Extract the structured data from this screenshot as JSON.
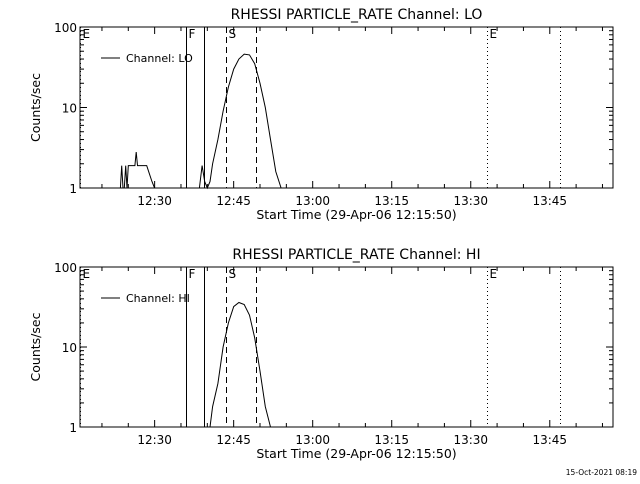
{
  "figure": {
    "timestamp": "15-Oct-2021 08:19"
  },
  "chart_data": [
    {
      "type": "line",
      "title": "RHESSI PARTICLE_RATE Channel: LO",
      "xlabel": "Start Time (29-Apr-06 12:15:50)",
      "ylabel": "Counts/sec",
      "yscale": "log",
      "ylim": [
        1,
        100
      ],
      "xlim": [
        "12:15:50",
        "13:57:00"
      ],
      "xticks": [
        "12:30",
        "12:45",
        "13:00",
        "13:15",
        "13:30",
        "13:45"
      ],
      "yticks": [
        "1",
        "10",
        "100"
      ],
      "legend": {
        "label": "Channel: LO",
        "position": "top-left"
      },
      "series": [
        {
          "name": "Channel: LO",
          "segments": [
            {
              "x": [
                "12:23:30",
                "12:23:45",
                "12:24:00",
                "12:24:15",
                "12:24:30",
                "12:24:45",
                "12:25:00",
                "12:25:15",
                "12:25:30",
                "12:25:45",
                "12:26:00",
                "12:26:15",
                "12:26:30",
                "12:26:45",
                "12:27:00",
                "12:27:15",
                "12:27:30",
                "12:27:45",
                "12:28:00",
                "12:28:30",
                "12:29:00",
                "12:29:30",
                "12:30:00"
              ],
              "y": [
                1,
                1.9,
                1,
                1,
                1.9,
                1,
                1.9,
                1.9,
                1.9,
                1.9,
                1.9,
                1.9,
                2.8,
                1.9,
                1.9,
                1.9,
                1.9,
                1.9,
                1.9,
                1.9,
                1.5,
                1.2,
                1
              ]
            },
            {
              "x": [
                "12:38:30",
                "12:39:00",
                "12:39:30",
                "12:40:00",
                "12:40:30",
                "12:41:00",
                "12:42:00",
                "12:43:00",
                "12:44:00",
                "12:45:00",
                "12:46:00",
                "12:47:00",
                "12:48:00",
                "12:49:00",
                "12:50:00",
                "12:51:00",
                "12:52:00",
                "12:53:00",
                "12:54:00"
              ],
              "y": [
                1,
                1.9,
                1.2,
                1,
                1.2,
                2,
                4,
                9,
                18,
                30,
                40,
                46,
                45,
                35,
                20,
                10,
                4,
                1.6,
                1
              ]
            }
          ]
        }
      ],
      "markers": [
        {
          "label": "E",
          "x": "12:15:50",
          "style": "dotted"
        },
        {
          "label": "F",
          "x": "12:36:00",
          "style": "solid"
        },
        {
          "label": "",
          "x": "12:39:20",
          "style": "solid"
        },
        {
          "label": "S",
          "x": "12:43:30",
          "style": "dashed"
        },
        {
          "label": "",
          "x": "12:49:10",
          "style": "dashed"
        },
        {
          "label": "E",
          "x": "13:33:00",
          "style": "dotted"
        },
        {
          "label": "",
          "x": "13:47:00",
          "style": "dotted"
        }
      ]
    },
    {
      "type": "line",
      "title": "RHESSI PARTICLE_RATE Channel: HI",
      "xlabel": "Start Time (29-Apr-06 12:15:50)",
      "ylabel": "Counts/sec",
      "yscale": "log",
      "ylim": [
        1,
        100
      ],
      "xlim": [
        "12:15:50",
        "13:57:00"
      ],
      "xticks": [
        "12:30",
        "12:45",
        "13:00",
        "13:15",
        "13:30",
        "13:45"
      ],
      "yticks": [
        "1",
        "10",
        "100"
      ],
      "legend": {
        "label": "Channel: HI",
        "position": "top-left"
      },
      "series": [
        {
          "name": "Channel: HI",
          "segments": [
            {
              "x": [
                "12:40:30",
                "12:41:00",
                "12:42:00",
                "12:43:00",
                "12:44:00",
                "12:45:00",
                "12:46:00",
                "12:47:00",
                "12:48:00",
                "12:49:00",
                "12:50:00",
                "12:51:00",
                "12:52:00"
              ],
              "y": [
                1,
                1.8,
                3.5,
                10,
                20,
                32,
                36,
                34,
                25,
                13,
                5,
                1.8,
                1
              ]
            }
          ]
        }
      ],
      "markers": [
        {
          "label": "E",
          "x": "12:15:50",
          "style": "dotted"
        },
        {
          "label": "F",
          "x": "12:36:00",
          "style": "solid"
        },
        {
          "label": "",
          "x": "12:39:20",
          "style": "solid"
        },
        {
          "label": "S",
          "x": "12:43:30",
          "style": "dashed"
        },
        {
          "label": "",
          "x": "12:49:10",
          "style": "dashed"
        },
        {
          "label": "E",
          "x": "13:33:00",
          "style": "dotted"
        },
        {
          "label": "",
          "x": "13:47:00",
          "style": "dotted"
        }
      ]
    }
  ]
}
